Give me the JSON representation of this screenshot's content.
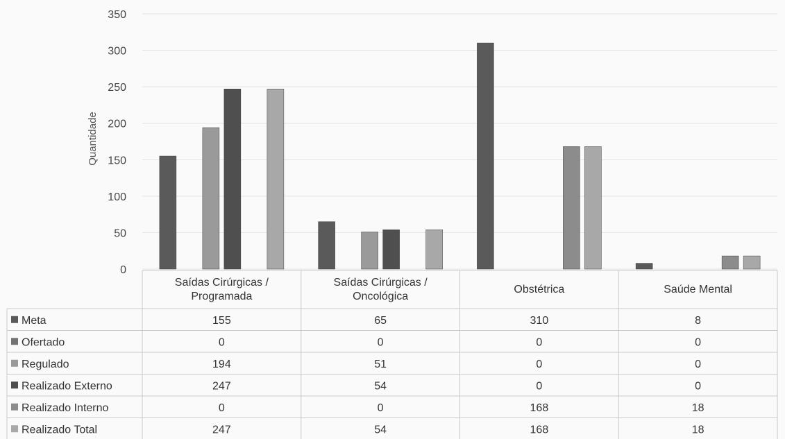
{
  "chart_data": {
    "type": "bar",
    "ylabel": "Quantidade",
    "ylim": [
      0,
      350
    ],
    "yticks": [
      0,
      50,
      100,
      150,
      200,
      250,
      300,
      350
    ],
    "grid": true,
    "legend": "data-table",
    "categories": [
      [
        "Saídas Cirúrgicas /",
        "Programada"
      ],
      [
        "Saídas Cirúrgicas /",
        "Oncológica"
      ],
      [
        "Obstétrica"
      ],
      [
        "Saúde Mental"
      ]
    ],
    "series": [
      {
        "name": "Meta",
        "color": "#5a5a5a",
        "values": [
          155,
          65,
          310,
          8
        ]
      },
      {
        "name": "Ofertado",
        "color": "#737373",
        "values": [
          0,
          0,
          0,
          0
        ]
      },
      {
        "name": "Regulado",
        "color": "#9a9a9a",
        "values": [
          194,
          51,
          0,
          0
        ]
      },
      {
        "name": "Realizado Externo",
        "color": "#4f4f4f",
        "values": [
          247,
          54,
          0,
          0
        ]
      },
      {
        "name": "Realizado Interno",
        "color": "#8c8c8c",
        "values": [
          0,
          0,
          168,
          18
        ]
      },
      {
        "name": "Realizado Total",
        "color": "#a8a8a8",
        "values": [
          247,
          54,
          168,
          18
        ]
      }
    ]
  }
}
